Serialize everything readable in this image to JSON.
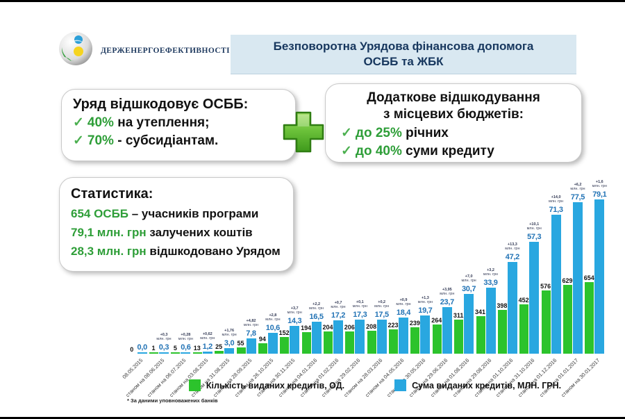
{
  "header": {
    "logo_text": "Держенергоефективності",
    "title_line1": "Безповоротна Урядова фінансова допомога",
    "title_line2": "ОСББ та ЖБК"
  },
  "left_box": {
    "title": "Уряд відшкодовує ОСББ:",
    "items": [
      {
        "check": "✓",
        "highlight": "40%",
        "rest": " на утеплення;"
      },
      {
        "check": "✓",
        "highlight": "70%",
        "rest": " - субсидіантам."
      }
    ]
  },
  "right_box": {
    "title_line1": "Додаткове відшкодування",
    "title_line2": "з місцевих бюджетів:",
    "items": [
      {
        "check": "✓",
        "highlight": "до 25%",
        "rest": " річних"
      },
      {
        "check": "✓",
        "highlight": "до 40%",
        "rest": " суми кредиту"
      }
    ]
  },
  "stats_box": {
    "title": "Статистика:",
    "items": [
      {
        "highlight": "654 ОСББ",
        "rest": " – учасників програми"
      },
      {
        "highlight": "79,1 млн. грн",
        "rest": " залучених коштів"
      },
      {
        "highlight": "28,3 млн. грн",
        "rest": " відшкодовано Урядом"
      }
    ]
  },
  "chart_data": {
    "type": "bar",
    "categories": [
      "08.05.2015",
      "станом на 08.06.2015",
      "станом на 06.07.2015",
      "станом на 03.08.2015",
      "станом на 31.08.2015",
      "станом на 28.09.2015",
      "станом на 26.10.2015",
      "станом на 30.11.2015",
      "станом на 04.01.2016",
      "станом на 01.02.2016",
      "станом на 29.02.2016",
      "станом на 28.03.2016",
      "станом на 04.05.2016",
      "станом на 30.05.2016",
      "станом на 29.06.2016",
      "станом на 01.08.2016",
      "станом на 29.08.2016",
      "станом на 01.10.2016",
      "станом на 31.10.2016",
      "станом на 01.12.2016",
      "станом на 01.01.2017",
      "станом на 30.01.2017"
    ],
    "series": [
      {
        "name": "Кількість виданих кредитів, ОД.",
        "color": "#2cc32c",
        "values": [
          0,
          1,
          5,
          13,
          25,
          55,
          94,
          152,
          194,
          204,
          206,
          208,
          223,
          239,
          264,
          311,
          341,
          398,
          452,
          576,
          629,
          654
        ],
        "values_display": [
          "0",
          "1",
          "5",
          "13",
          "25",
          "55",
          "94",
          "152",
          "194",
          "204",
          "206",
          "208",
          "223",
          "239",
          "264",
          "311",
          "341",
          "398",
          "452",
          "576",
          "629",
          "654"
        ]
      },
      {
        "name": "Сума виданих кредитів, МЛН. ГРН.",
        "color": "#29a7e0",
        "values": [
          0.0,
          0.3,
          0.6,
          1.2,
          3.0,
          7.8,
          10.6,
          14.3,
          16.5,
          17.2,
          17.3,
          17.5,
          18.4,
          19.7,
          23.7,
          30.7,
          33.9,
          47.2,
          57.3,
          71.3,
          77.5,
          79.1
        ],
        "values_display": [
          "0,0",
          "0,3",
          "0,6",
          "1,2",
          "3,0",
          "7,8",
          "10,6",
          "14,3",
          "16,5",
          "17,2",
          "17,3",
          "17,5",
          "18,4",
          "19,7",
          "23,7",
          "30,7",
          "33,9",
          "47,2",
          "57,3",
          "71,3",
          "77,5",
          "79,1"
        ]
      }
    ],
    "annotations": [
      "",
      "+0,3",
      "+0,28",
      "+0,62",
      "+1,76",
      "+4,82",
      "+2,8",
      "+3,7",
      "+2,2",
      "+0,7",
      "+0,1",
      "+0,2",
      "+0,9",
      "+1,3",
      "+3,95",
      "+7,0",
      "+3,2",
      "+13,3",
      "+10,1",
      "+14,0",
      "+6,2",
      "+1,6"
    ],
    "annotation_unit": "млн. грн",
    "title": "",
    "xlabel": "",
    "ylabel": "",
    "ylim_count": [
      0,
      700
    ],
    "ylim_sum": [
      0,
      85
    ],
    "grid": false,
    "legend_position": "bottom"
  },
  "footnote": "* За даними уповноважених банків",
  "colors": {
    "title_navy": "#17375e",
    "title_box_bg": "#d9e8f1",
    "highlight_green": "#2e9e38",
    "bar_green": "#2cc32c",
    "bar_blue": "#29a7e0",
    "blue_label": "#2273b5"
  }
}
